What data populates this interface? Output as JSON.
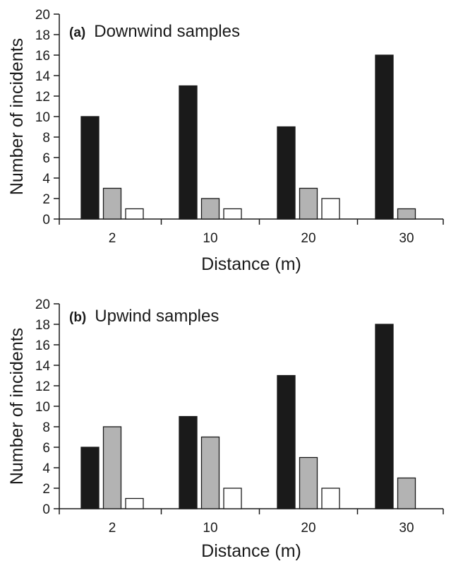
{
  "chart_data": [
    {
      "type": "bar",
      "panel_label": "(a)",
      "title": "Downwind samples",
      "xlabel": "Distance (m)",
      "ylabel": "Number of incidents",
      "categories": [
        "2",
        "10",
        "20",
        "30"
      ],
      "ylim": [
        0,
        20
      ],
      "yticks": [
        "0",
        "2",
        "4",
        "6",
        "8",
        "10",
        "12",
        "14",
        "16",
        "18",
        "20"
      ],
      "grid": false,
      "legend": "none",
      "series": [
        {
          "color": "#1a1a1a",
          "values": [
            10,
            13,
            9,
            16
          ]
        },
        {
          "color": "#b3b3b3",
          "values": [
            3,
            2,
            3,
            1
          ]
        },
        {
          "color": "#ffffff",
          "values": [
            1,
            1,
            2,
            0
          ]
        }
      ]
    },
    {
      "type": "bar",
      "panel_label": "(b)",
      "title": "Upwind samples",
      "xlabel": "Distance (m)",
      "ylabel": "Number of incidents",
      "categories": [
        "2",
        "10",
        "20",
        "30"
      ],
      "ylim": [
        0,
        20
      ],
      "yticks": [
        "0",
        "2",
        "4",
        "6",
        "8",
        "10",
        "12",
        "14",
        "16",
        "18",
        "20"
      ],
      "grid": false,
      "legend": "none",
      "series": [
        {
          "color": "#1a1a1a",
          "values": [
            6,
            9,
            13,
            18
          ]
        },
        {
          "color": "#b3b3b3",
          "values": [
            8,
            7,
            5,
            3
          ]
        },
        {
          "color": "#ffffff",
          "values": [
            1,
            2,
            2,
            0
          ]
        }
      ]
    }
  ]
}
